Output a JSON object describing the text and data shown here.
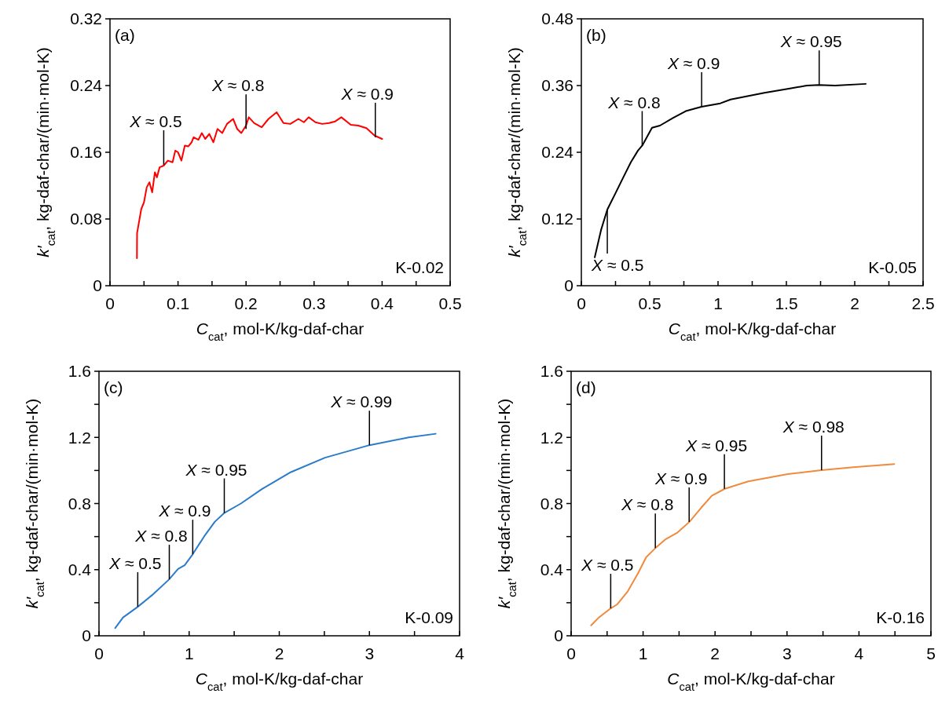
{
  "chart_data": [
    {
      "type": "line",
      "xlabel": "C$_{cat}$, mol-K/kg-daf-char",
      "ylabel": "k′$_{cat}$, kg-daf-char/(min·mol-K)",
      "xlim": [
        0,
        0.5
      ],
      "ylim": [
        0,
        0.32
      ],
      "xticks": [
        0,
        {
          "value": 0.05,
          "label": null
        },
        0.1,
        {
          "value": 0.15,
          "label": null
        },
        0.2,
        {
          "value": 0.25,
          "label": null
        },
        0.3,
        {
          "value": 0.35,
          "label": null
        },
        0.4,
        {
          "value": 0.45,
          "label": null
        },
        0.5
      ],
      "yticks": [
        0,
        0.08,
        0.16,
        0.24,
        0.32
      ],
      "x": [
        0.0396,
        0.0398,
        0.046,
        0.05,
        0.054,
        0.058,
        0.062,
        0.066,
        0.069,
        0.073,
        0.079,
        0.085,
        0.092,
        0.096,
        0.1,
        0.105,
        0.11,
        0.115,
        0.12,
        0.123,
        0.13,
        0.135,
        0.14,
        0.146,
        0.152,
        0.158,
        0.165,
        0.172,
        0.181,
        0.187,
        0.193,
        0.2,
        0.204,
        0.212,
        0.223,
        0.233,
        0.245,
        0.255,
        0.265,
        0.277,
        0.285,
        0.292,
        0.302,
        0.312,
        0.322,
        0.331,
        0.34,
        0.354,
        0.365,
        0.377,
        0.389,
        0.4
      ],
      "series": [
        {
          "color": "#ff0000",
          "values": [
            0.033,
            0.063,
            0.092,
            0.1,
            0.118,
            0.124,
            0.112,
            0.136,
            0.13,
            0.142,
            0.144,
            0.15,
            0.148,
            0.162,
            0.16,
            0.15,
            0.168,
            0.167,
            0.172,
            0.178,
            0.175,
            0.183,
            0.176,
            0.182,
            0.172,
            0.188,
            0.183,
            0.194,
            0.2,
            0.188,
            0.183,
            0.192,
            0.202,
            0.195,
            0.19,
            0.2,
            0.208,
            0.195,
            0.194,
            0.2,
            0.196,
            0.202,
            0.196,
            0.194,
            0.195,
            0.197,
            0.202,
            0.193,
            0.192,
            0.189,
            0.18,
            0.176
          ]
        }
      ],
      "annotations": [
        "(a)",
        "K-0.02",
        {
          "text": "X ≈ 0.5",
          "x": 0.079,
          "y": 0.145
        },
        {
          "text": "X ≈ 0.8",
          "x": 0.2,
          "y": 0.188
        },
        {
          "text": "X ≈ 0.9",
          "x": 0.39,
          "y": 0.178
        }
      ]
    },
    {
      "type": "line",
      "xlabel": "C$_{cat}$, mol-K/kg-daf-char",
      "ylabel": "k′$_{cat}$, kg-daf-char/(min·mol-K)",
      "xlim": [
        0,
        2.5
      ],
      "ylim": [
        0,
        0.48
      ],
      "xticks": [
        0,
        {
          "value": 0.25,
          "label": null
        },
        0.5,
        {
          "value": 0.75,
          "label": null
        },
        1,
        {
          "value": 1.25,
          "label": null
        },
        1.5,
        {
          "value": 1.75,
          "label": null
        },
        2,
        {
          "value": 2.25,
          "label": null
        },
        2.5
      ],
      "yticks": [
        0,
        0.12,
        0.24,
        0.36,
        0.48
      ],
      "x": [
        0.098,
        0.144,
        0.19,
        0.247,
        0.305,
        0.362,
        0.414,
        0.448,
        0.517,
        0.575,
        0.672,
        0.764,
        0.879,
        1.017,
        1.092,
        1.339,
        1.534,
        1.649,
        1.736,
        1.856,
        2.08
      ],
      "series": [
        {
          "color": "#000000",
          "values": [
            0.051,
            0.1,
            0.137,
            0.165,
            0.194,
            0.222,
            0.243,
            0.253,
            0.284,
            0.288,
            0.302,
            0.314,
            0.322,
            0.328,
            0.335,
            0.347,
            0.355,
            0.36,
            0.361,
            0.36,
            0.363
          ]
        }
      ],
      "annotations": [
        "(b)",
        "K-0.05",
        {
          "text": "X ≈ 0.5",
          "x": 0.19,
          "y": 0.137
        },
        {
          "text": "X ≈ 0.8",
          "x": 0.445,
          "y": 0.252
        },
        {
          "text": "X ≈ 0.9",
          "x": 0.88,
          "y": 0.322
        },
        {
          "text": "X ≈ 0.95",
          "x": 1.74,
          "y": 0.361
        }
      ]
    },
    {
      "type": "line",
      "xlabel": "C$_{cat}$, mol-K/kg-daf-char",
      "ylabel": "k′$_{cat}$, kg-daf-char/(min·mol-K)",
      "xlim": [
        0,
        4
      ],
      "ylim": [
        0,
        1.6
      ],
      "xticks": [
        0,
        {
          "value": 0.5,
          "label": null
        },
        1,
        {
          "value": 1.5,
          "label": null
        },
        2,
        {
          "value": 2.5,
          "label": null
        },
        3,
        {
          "value": 3.5,
          "label": null
        },
        4
      ],
      "yticks": [
        0,
        {
          "value": 0.2,
          "label": null
        },
        0.4,
        {
          "value": 0.6,
          "label": null
        },
        0.8,
        {
          "value": 1.0,
          "label": null
        },
        1.2,
        {
          "value": 1.4,
          "label": null
        },
        1.6
      ],
      "x": [
        0.18,
        0.267,
        0.427,
        0.587,
        0.776,
        0.877,
        0.95,
        1.037,
        1.168,
        1.284,
        1.385,
        1.574,
        1.807,
        2.129,
        2.507,
        3.0,
        3.436,
        3.735
      ],
      "series": [
        {
          "color": "#2a7ccb",
          "values": [
            0.047,
            0.111,
            0.174,
            0.245,
            0.34,
            0.404,
            0.427,
            0.491,
            0.602,
            0.689,
            0.741,
            0.8,
            0.887,
            0.99,
            1.077,
            1.153,
            1.2,
            1.222
          ]
        }
      ],
      "annotations": [
        "(c)",
        "K-0.09",
        {
          "text": "X ≈ 0.5",
          "x": 0.43,
          "y": 0.176
        },
        {
          "text": "X ≈ 0.8",
          "x": 0.78,
          "y": 0.342
        },
        {
          "text": "X ≈ 0.9",
          "x": 1.04,
          "y": 0.493
        },
        {
          "text": "X ≈ 0.95",
          "x": 1.39,
          "y": 0.743
        },
        {
          "text": "X ≈ 0.99",
          "x": 3.0,
          "y": 1.153
        }
      ]
    },
    {
      "type": "line",
      "xlabel": "C$_{cat}$, mol-K/kg-daf-char",
      "ylabel": "k′$_{cat}$, kg-daf-char/(min·mol-K)",
      "xlim": [
        0,
        5
      ],
      "ylim": [
        0,
        1.6
      ],
      "xticks": [
        0,
        {
          "value": 0.5,
          "label": null
        },
        1,
        {
          "value": 1.5,
          "label": null
        },
        2,
        {
          "value": 2.5,
          "label": null
        },
        3,
        {
          "value": 3.5,
          "label": null
        },
        4,
        {
          "value": 4.5,
          "label": null
        },
        5
      ],
      "yticks": [
        0,
        {
          "value": 0.2,
          "label": null
        },
        0.4,
        {
          "value": 0.6,
          "label": null
        },
        0.8,
        {
          "value": 1.0,
          "label": null
        },
        1.2,
        {
          "value": 1.4,
          "label": null
        },
        1.6
      ],
      "x": [
        0.277,
        0.386,
        0.55,
        0.641,
        0.787,
        0.932,
        1.042,
        1.17,
        1.316,
        1.48,
        1.644,
        1.808,
        1.954,
        2.135,
        2.463,
        3.01,
        3.48,
        3.92,
        4.49
      ],
      "series": [
        {
          "color": "#f08a3c",
          "values": [
            0.063,
            0.111,
            0.166,
            0.19,
            0.269,
            0.38,
            0.475,
            0.53,
            0.585,
            0.625,
            0.689,
            0.775,
            0.847,
            0.889,
            0.934,
            0.978,
            1.002,
            1.02,
            1.039
          ]
        }
      ],
      "annotations": [
        "(d)",
        "K-0.16",
        {
          "text": "X ≈ 0.5",
          "x": 0.55,
          "y": 0.166
        },
        {
          "text": "X ≈ 0.8",
          "x": 1.17,
          "y": 0.53
        },
        {
          "text": "X ≈ 0.9",
          "x": 1.64,
          "y": 0.689
        },
        {
          "text": "X ≈ 0.95",
          "x": 2.13,
          "y": 0.889
        },
        {
          "text": "X ≈ 0.98",
          "x": 3.48,
          "y": 1.002
        }
      ]
    }
  ]
}
